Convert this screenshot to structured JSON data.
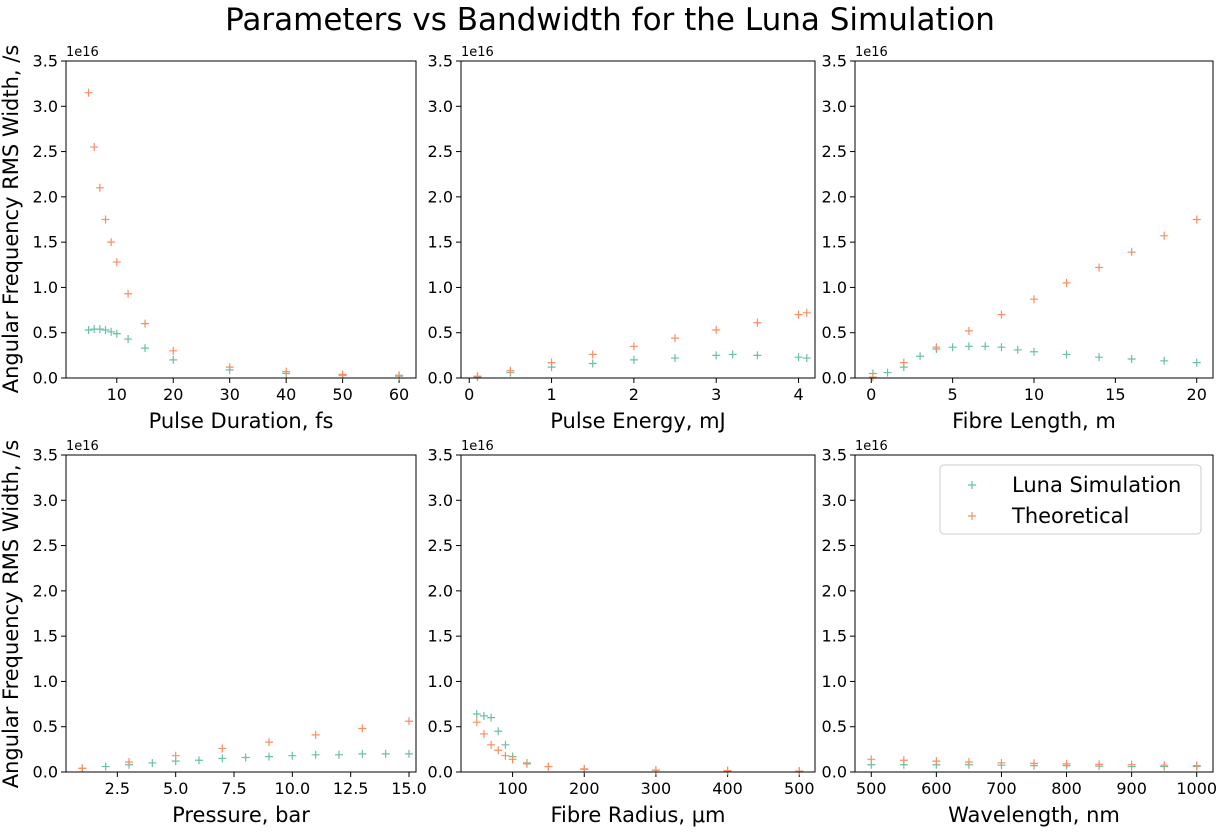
{
  "colors": {
    "luna": "#66c2a5",
    "theory": "#fc8d62"
  },
  "title": "Parameters vs Bandwidth for the Luna Simulation",
  "ylabel": "Angular Frequency RMS Width, /s",
  "legend": {
    "position": "upper-right of last panel",
    "items": [
      "Luna Simulation",
      "Theoretical"
    ]
  },
  "chart_data": [
    {
      "type": "scatter",
      "xlabel": "Pulse Duration, fs",
      "xlim": [
        1,
        63
      ],
      "ylim": [
        0,
        3.5e+16
      ],
      "y_multiplier": "1e16",
      "xticks": [
        "10",
        "20",
        "30",
        "40",
        "50",
        "60"
      ],
      "yticks": [
        "0.0",
        "0.5",
        "1.0",
        "1.5",
        "2.0",
        "2.5",
        "3.0",
        "3.5"
      ],
      "series": [
        {
          "name": "Luna Simulation",
          "x": [
            5,
            6,
            7,
            8,
            9,
            10,
            12,
            15,
            20,
            30,
            40,
            50,
            60
          ],
          "y": [
            5300000000000000.0,
            5400000000000000.0,
            5400000000000000.0,
            5300000000000000.0,
            5100000000000000.0,
            4900000000000000.0,
            4300000000000000.0,
            3300000000000000.0,
            2000000000000000.0,
            900000000000000.0,
            500000000000000.0,
            300000000000000.0,
            200000000000000.0
          ]
        },
        {
          "name": "Theoretical",
          "x": [
            5,
            6,
            7,
            8,
            9,
            10,
            12,
            15,
            20,
            30,
            40,
            50,
            60
          ],
          "y": [
            3.15e+16,
            2.55e+16,
            2.1e+16,
            1.75e+16,
            1.5e+16,
            1.28e+16,
            9300000000000000.0,
            6000000000000000.0,
            3000000000000000.0,
            1200000000000000.0,
            700000000000000.0,
            400000000000000.0,
            300000000000000.0
          ]
        }
      ]
    },
    {
      "type": "scatter",
      "xlabel": "Pulse Energy, mJ",
      "xlim": [
        -0.1,
        4.2
      ],
      "ylim": [
        0,
        3.5e+16
      ],
      "y_multiplier": "1e16",
      "xticks": [
        "0",
        "1",
        "2",
        "3",
        "4"
      ],
      "yticks": [
        "0.0",
        "0.5",
        "1.0",
        "1.5",
        "2.0",
        "2.5",
        "3.0",
        "3.5"
      ],
      "series": [
        {
          "name": "Luna Simulation",
          "x": [
            0.1,
            0.5,
            1.0,
            1.5,
            2.0,
            2.5,
            3.0,
            3.2,
            3.5,
            4.0,
            4.1
          ],
          "y": [
            100000000000000.0,
            600000000000000.0,
            1200000000000000.0,
            1600000000000000.0,
            2000000000000000.0,
            2200000000000000.0,
            2500000000000000.0,
            2600000000000000.0,
            2500000000000000.0,
            2300000000000000.0,
            2200000000000000.0
          ]
        },
        {
          "name": "Theoretical",
          "x": [
            0.1,
            0.5,
            1.0,
            1.5,
            2.0,
            2.5,
            3.0,
            3.5,
            4.0,
            4.1
          ],
          "y": [
            200000000000000.0,
            800000000000000.0,
            1700000000000000.0,
            2600000000000000.0,
            3500000000000000.0,
            4400000000000000.0,
            5300000000000000.0,
            6100000000000000.0,
            7000000000000000.0,
            7200000000000000.0
          ]
        }
      ]
    },
    {
      "type": "scatter",
      "xlabel": "Fibre Length, m",
      "xlim": [
        -1,
        21
      ],
      "ylim": [
        0,
        3.5e+16
      ],
      "y_multiplier": "1e16",
      "xticks": [
        "0",
        "5",
        "10",
        "15",
        "20"
      ],
      "yticks": [
        "0.0",
        "0.5",
        "1.0",
        "1.5",
        "2.0",
        "2.5",
        "3.0",
        "3.5"
      ],
      "series": [
        {
          "name": "Luna Simulation",
          "x": [
            0.1,
            1,
            2,
            3,
            4,
            5,
            6,
            7,
            8,
            9,
            10,
            12,
            14,
            16,
            18,
            20
          ],
          "y": [
            500000000000000.0,
            600000000000000.0,
            1200000000000000.0,
            2400000000000000.0,
            3200000000000000.0,
            3400000000000000.0,
            3500000000000000.0,
            3500000000000000.0,
            3400000000000000.0,
            3100000000000000.0,
            2900000000000000.0,
            2600000000000000.0,
            2300000000000000.0,
            2100000000000000.0,
            1900000000000000.0,
            1700000000000000.0
          ]
        },
        {
          "name": "Theoretical",
          "x": [
            0.1,
            2,
            4,
            6,
            8,
            10,
            12,
            14,
            16,
            18,
            20
          ],
          "y": [
            100000000000000.0,
            1700000000000000.0,
            3400000000000000.0,
            5200000000000000.0,
            7000000000000000.0,
            8700000000000000.0,
            1.05e+16,
            1.22e+16,
            1.39e+16,
            1.57e+16,
            1.75e+16
          ]
        }
      ]
    },
    {
      "type": "scatter",
      "xlabel": "Pressure, bar",
      "xlim": [
        0.3,
        15.3
      ],
      "ylim": [
        0,
        3.5e+16
      ],
      "y_multiplier": "1e16",
      "xticks": [
        "2.5",
        "5.0",
        "7.5",
        "10.0",
        "12.5",
        "15.0"
      ],
      "yticks": [
        "0.0",
        "0.5",
        "1.0",
        "1.5",
        "2.0",
        "2.5",
        "3.0",
        "3.5"
      ],
      "series": [
        {
          "name": "Luna Simulation",
          "x": [
            1,
            2,
            3,
            4,
            5,
            6,
            7,
            8,
            9,
            10,
            11,
            12,
            13,
            14,
            15
          ],
          "y": [
            400000000000000.0,
            600000000000000.0,
            800000000000000.0,
            1000000000000000.0,
            1200000000000000.0,
            1300000000000000.0,
            1500000000000000.0,
            1600000000000000.0,
            1700000000000000.0,
            1800000000000000.0,
            1900000000000000.0,
            1900000000000000.0,
            2000000000000000.0,
            2000000000000000.0,
            2000000000000000.0
          ]
        },
        {
          "name": "Theoretical",
          "x": [
            1,
            3,
            5,
            7,
            9,
            11,
            13,
            15
          ],
          "y": [
            400000000000000.0,
            1100000000000000.0,
            1800000000000000.0,
            2600000000000000.0,
            3300000000000000.0,
            4100000000000000.0,
            4800000000000000.0,
            5600000000000000.0
          ]
        }
      ]
    },
    {
      "type": "scatter",
      "xlabel": "Fibre Radius, μm",
      "xlim": [
        28,
        522
      ],
      "ylim": [
        0,
        3.5e+16
      ],
      "y_multiplier": "1e16",
      "xticks": [
        "100",
        "200",
        "300",
        "400",
        "500"
      ],
      "yticks": [
        "0.0",
        "0.5",
        "1.0",
        "1.5",
        "2.0",
        "2.5",
        "3.0",
        "3.5"
      ],
      "series": [
        {
          "name": "Luna Simulation",
          "x": [
            50,
            60,
            70,
            80,
            90,
            100,
            120,
            150,
            200,
            300,
            400,
            500
          ],
          "y": [
            6400000000000000.0,
            6200000000000000.0,
            6000000000000000.0,
            4500000000000000.0,
            3000000000000000.0,
            1700000000000000.0,
            1000000000000000.0,
            600000000000000.0,
            300000000000000.0,
            200000000000000.0,
            100000000000000.0,
            100000000000000.0
          ]
        },
        {
          "name": "Theoretical",
          "x": [
            50,
            60,
            70,
            80,
            90,
            100,
            120,
            150,
            200,
            300,
            400,
            500
          ],
          "y": [
            5500000000000000.0,
            4200000000000000.0,
            3000000000000000.0,
            2400000000000000.0,
            1800000000000000.0,
            1400000000000000.0,
            900000000000000.0,
            600000000000000.0,
            350000000000000.0,
            200000000000000.0,
            150000000000000.0,
            100000000000000.0
          ]
        }
      ]
    },
    {
      "type": "scatter",
      "xlabel": "Wavelength, nm",
      "xlim": [
        475,
        1025
      ],
      "ylim": [
        0,
        3.5e+16
      ],
      "y_multiplier": "1e16",
      "xticks": [
        "500",
        "600",
        "700",
        "800",
        "900",
        "1000"
      ],
      "yticks": [
        "0.0",
        "0.5",
        "1.0",
        "1.5",
        "2.0",
        "2.5",
        "3.0",
        "3.5"
      ],
      "series": [
        {
          "name": "Luna Simulation",
          "x": [
            500,
            550,
            600,
            650,
            700,
            750,
            800,
            850,
            900,
            950,
            1000
          ],
          "y": [
            800000000000000.0,
            800000000000000.0,
            800000000000000.0,
            800000000000000.0,
            750000000000000.0,
            700000000000000.0,
            700000000000000.0,
            650000000000000.0,
            600000000000000.0,
            600000000000000.0,
            600000000000000.0
          ]
        },
        {
          "name": "Theoretical",
          "x": [
            500,
            550,
            600,
            650,
            700,
            750,
            800,
            850,
            900,
            950,
            1000
          ],
          "y": [
            1400000000000000.0,
            1300000000000000.0,
            1200000000000000.0,
            1100000000000000.0,
            1000000000000000.0,
            950000000000000.0,
            900000000000000.0,
            850000000000000.0,
            800000000000000.0,
            750000000000000.0,
            700000000000000.0
          ]
        }
      ]
    }
  ]
}
